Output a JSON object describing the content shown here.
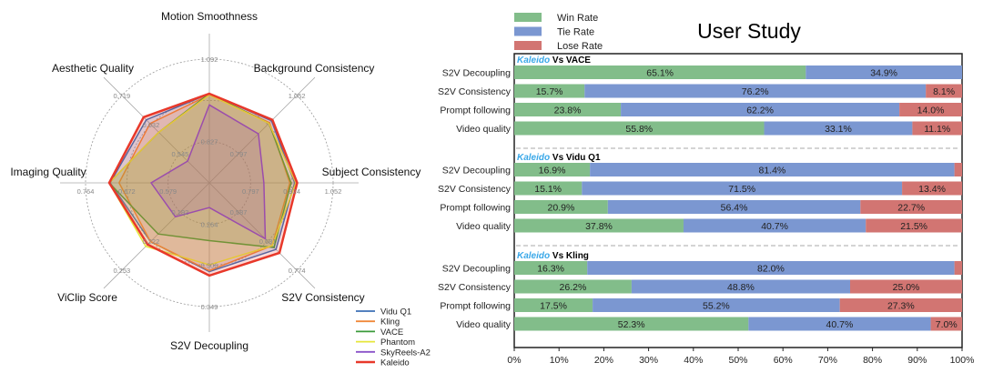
{
  "chart_data": [
    {
      "type": "radar",
      "axes": [
        {
          "label": "Motion Smoothness",
          "ticks": [
            "0.827",
            "1.092"
          ],
          "range": [
            0.827,
            1.092
          ]
        },
        {
          "label": "Background Consistency",
          "ticks": [
            "0.797",
            "1.052"
          ],
          "range": [
            0.797,
            1.052
          ]
        },
        {
          "label": "Subject Consistency",
          "ticks": [
            "0.797",
            "0.924",
            "1.052"
          ],
          "range": [
            0.797,
            1.052
          ]
        },
        {
          "label": "S2V Consistency",
          "ticks": [
            "0.587",
            "0.681",
            "0.774"
          ],
          "range": [
            0.587,
            0.774
          ]
        },
        {
          "label": "S2V Decoupling",
          "ticks": [
            "0.264",
            "0.306",
            "0.349"
          ],
          "range": [
            0.264,
            0.349
          ]
        },
        {
          "label": "ViClip Score",
          "ticks": [
            "0.192",
            "0.222",
            "0.253"
          ],
          "range": [
            0.192,
            0.253
          ]
        },
        {
          "label": "Imaging Quality",
          "ticks": [
            "0.579",
            "0.672",
            "0.764"
          ],
          "range": [
            0.579,
            0.764
          ]
        },
        {
          "label": "Aesthetic Quality",
          "ticks": [
            "0.545",
            "0.632",
            "0.719"
          ],
          "range": [
            0.545,
            0.719
          ]
        }
      ],
      "grid": true,
      "legend": "bottom-right",
      "series": [
        {
          "name": "Vidu Q1",
          "color": "#3b6fb6",
          "values": [
            0.981,
            0.941,
            0.933,
            0.707,
            0.313,
            0.223,
            0.709,
            0.646
          ]
        },
        {
          "name": "Kling",
          "color": "#f0883a",
          "values": [
            0.977,
            0.933,
            0.918,
            0.695,
            0.312,
            0.223,
            0.689,
            0.635
          ]
        },
        {
          "name": "VACE",
          "color": "#3a9a3a",
          "values": [
            0.981,
            0.93,
            0.922,
            0.701,
            0.281,
            0.215,
            0.711,
            0.609
          ]
        },
        {
          "name": "Phantom",
          "color": "#e6e63a",
          "values": [
            0.977,
            0.93,
            0.937,
            0.695,
            0.306,
            0.228,
            0.711,
            0.609
          ]
        },
        {
          "name": "SkyReels-A2",
          "color": "#8a52c8",
          "values": [
            0.945,
            0.884,
            0.838,
            0.673,
            0.247,
            0.197,
            0.617,
            0.523
          ]
        },
        {
          "name": "Kaleido",
          "color": "#e8382a",
          "values": [
            0.981,
            0.945,
            0.941,
            0.718,
            0.317,
            0.226,
            0.711,
            0.654
          ]
        }
      ]
    },
    {
      "type": "bar",
      "orientation": "horizontal-stacked",
      "title": "User Study",
      "xlim": [
        0,
        100
      ],
      "xticks": [
        "0%",
        "10%",
        "20%",
        "30%",
        "40%",
        "50%",
        "60%",
        "70%",
        "80%",
        "90%",
        "100%"
      ],
      "legend": "top-left",
      "series_meta": [
        {
          "name": "Win Rate",
          "color": "#82bd8a"
        },
        {
          "name": "Tie Rate",
          "color": "#7b97d1"
        },
        {
          "name": "Lose Rate",
          "color": "#d27572"
        }
      ],
      "groups": [
        {
          "brand": "Kaleido",
          "vs": "Vs VACE",
          "rows": [
            {
              "label": "S2V Decoupling",
              "values": [
                65.1,
                34.9,
                0.0
              ],
              "labels": [
                "65.1%",
                "34.9%",
                ""
              ]
            },
            {
              "label": "S2V Consistency",
              "values": [
                15.7,
                76.2,
                8.1
              ],
              "labels": [
                "15.7%",
                "76.2%",
                "8.1%"
              ]
            },
            {
              "label": "Prompt following",
              "values": [
                23.8,
                62.2,
                14.0
              ],
              "labels": [
                "23.8%",
                "62.2%",
                "14.0%"
              ]
            },
            {
              "label": "Video quality",
              "values": [
                55.8,
                33.1,
                11.1
              ],
              "labels": [
                "55.8%",
                "33.1%",
                "11.1%"
              ]
            }
          ]
        },
        {
          "brand": "Kaleido",
          "vs": "Vs Vidu Q1",
          "rows": [
            {
              "label": "S2V Decoupling",
              "values": [
                16.9,
                81.4,
                1.7
              ],
              "labels": [
                "16.9%",
                "81.4%",
                ""
              ]
            },
            {
              "label": "S2V Consistency",
              "values": [
                15.1,
                71.5,
                13.4
              ],
              "labels": [
                "15.1%",
                "71.5%",
                "13.4%"
              ]
            },
            {
              "label": "Prompt following",
              "values": [
                20.9,
                56.4,
                22.7
              ],
              "labels": [
                "20.9%",
                "56.4%",
                "22.7%"
              ]
            },
            {
              "label": "Video quality",
              "values": [
                37.8,
                40.7,
                21.5
              ],
              "labels": [
                "37.8%",
                "40.7%",
                "21.5%"
              ]
            }
          ]
        },
        {
          "brand": "Kaleido",
          "vs": "Vs Kling",
          "rows": [
            {
              "label": "S2V Decoupling",
              "values": [
                16.3,
                82.0,
                1.7
              ],
              "labels": [
                "16.3%",
                "82.0%",
                ""
              ]
            },
            {
              "label": "S2V Consistency",
              "values": [
                26.2,
                48.8,
                25.0
              ],
              "labels": [
                "26.2%",
                "48.8%",
                "25.0%"
              ]
            },
            {
              "label": "Prompt following",
              "values": [
                17.5,
                55.2,
                27.3
              ],
              "labels": [
                "17.5%",
                "55.2%",
                "27.3%"
              ]
            },
            {
              "label": "Video quality",
              "values": [
                52.3,
                40.7,
                7.0
              ],
              "labels": [
                "52.3%",
                "40.7%",
                "7.0%"
              ]
            }
          ]
        }
      ]
    }
  ]
}
